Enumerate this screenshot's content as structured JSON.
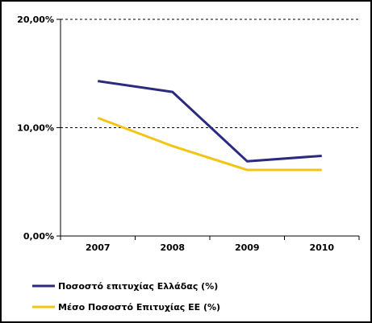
{
  "chart_data": {
    "type": "line",
    "categories": [
      "2007",
      "2008",
      "2009",
      "2010"
    ],
    "series": [
      {
        "name": "Ποσοστό επιτυχίας Ελλάδας (%)",
        "values": [
          14.3,
          13.3,
          6.9,
          7.4
        ],
        "color": "#2b2a7f"
      },
      {
        "name": "Μέσο Ποσοστό Επιτυχίας ΕΕ (%)",
        "values": [
          10.9,
          8.3,
          6.1,
          6.1
        ],
        "color": "#f2c414"
      }
    ],
    "ylim": [
      0,
      20
    ],
    "yticks": [
      {
        "value": 0,
        "label": "0,00%"
      },
      {
        "value": 10,
        "label": "10,00%"
      },
      {
        "value": 20,
        "label": "20,00%"
      }
    ],
    "grid": true,
    "legend_position": "bottom",
    "title": "",
    "xlabel": "",
    "ylabel": ""
  }
}
